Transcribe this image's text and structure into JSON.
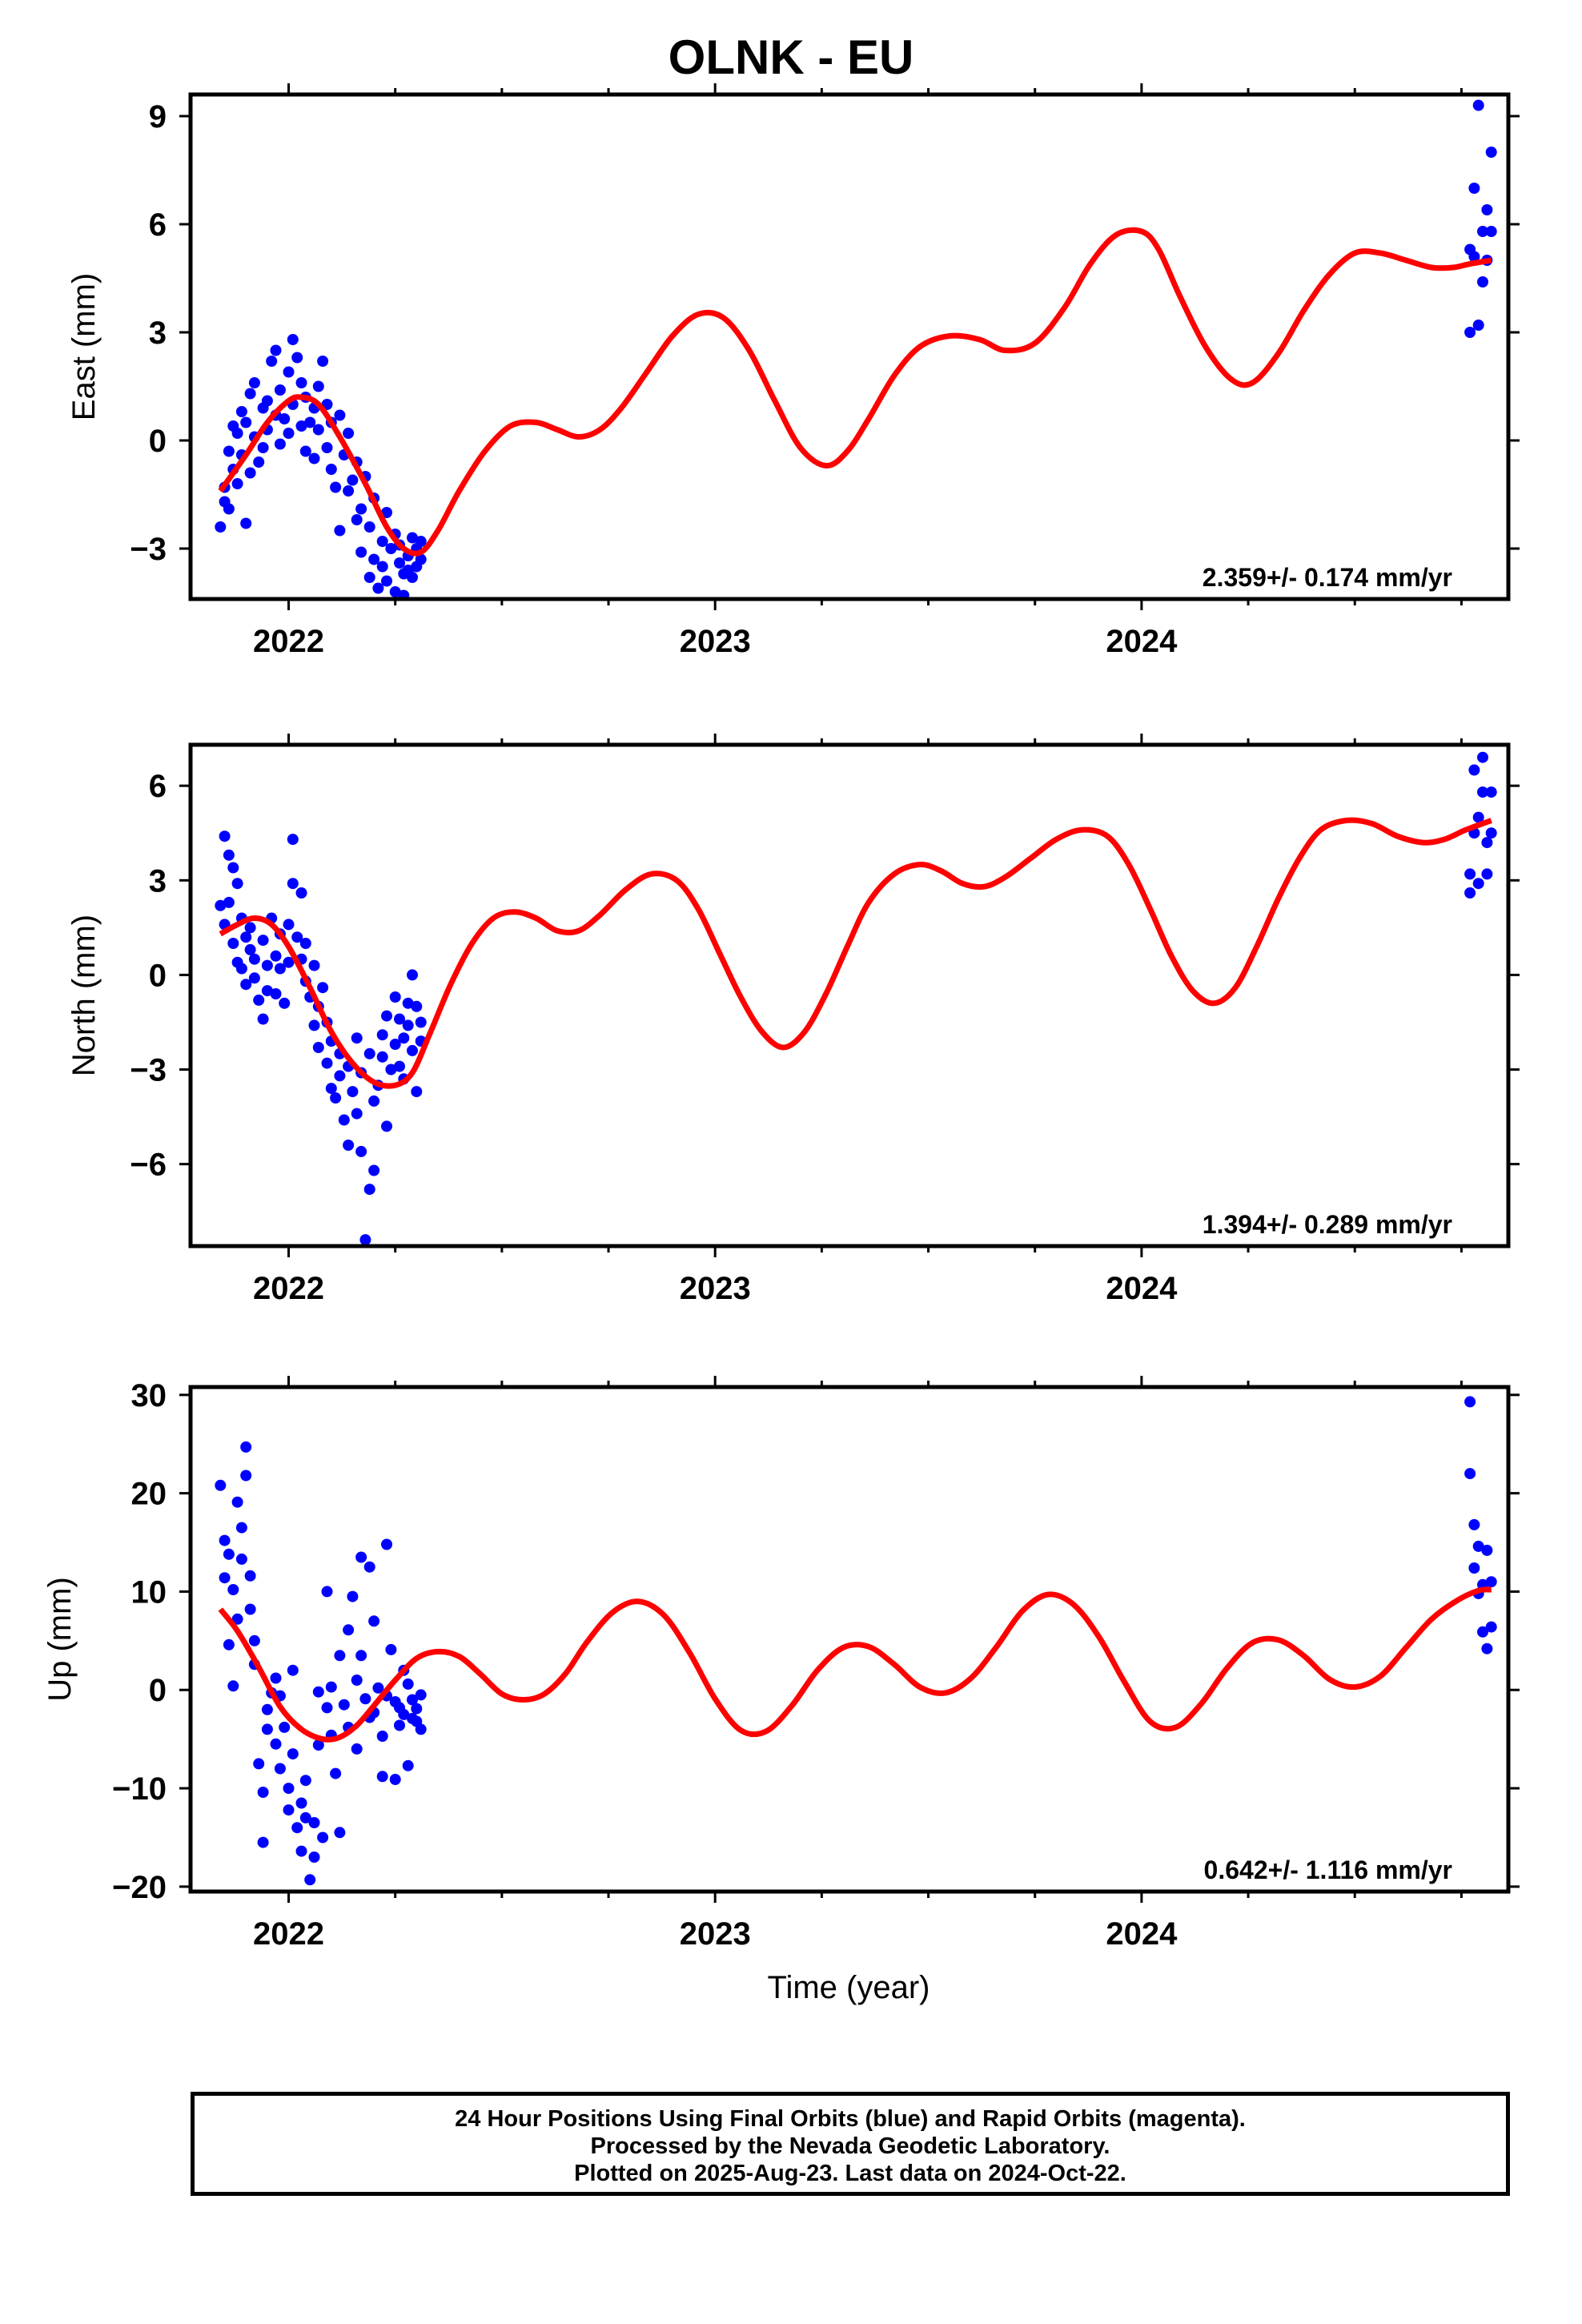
{
  "title": "OLNK - EU",
  "x_axis_label": "Time (year)",
  "footer": {
    "line1": "24 Hour Positions Using Final Orbits (blue) and Rapid Orbits (magenta).",
    "line2": "Processed by the Nevada Geodetic Laboratory.",
    "line3": "Plotted on 2025-Aug-23. Last data on 2024-Oct-22."
  },
  "colors": {
    "final_orbit_points": "#0000ff",
    "model_fit": "#ff0000"
  },
  "chart_data": [
    {
      "type": "scatter",
      "ylabel": "East (mm)",
      "rate_label": "2.359+/- 0.174 mm/yr",
      "xlim": [
        2021.77,
        2024.86
      ],
      "ylim": [
        -4.4,
        9.6
      ],
      "yticks": [
        -3,
        0,
        3,
        6,
        9
      ],
      "xticks": [
        2022,
        2023,
        2024
      ],
      "series": [
        {
          "kind": "points",
          "x": [
            2021.84,
            2021.85,
            2021.85,
            2021.86,
            2021.86,
            2021.87,
            2021.87,
            2021.88,
            2021.88,
            2021.89,
            2021.89,
            2021.9,
            2021.9,
            2021.91,
            2021.91,
            2021.92,
            2021.92,
            2021.93,
            2021.94,
            2021.94,
            2021.95,
            2021.95,
            2021.96,
            2021.97,
            2021.97,
            2021.98,
            2021.98,
            2021.99,
            2022.0,
            2022.0,
            2022.01,
            2022.01,
            2022.02,
            2022.03,
            2022.03,
            2022.04,
            2022.04,
            2022.05,
            2022.06,
            2022.06,
            2022.07,
            2022.07,
            2022.08,
            2022.09,
            2022.09,
            2022.1,
            2022.1,
            2022.11,
            2022.12,
            2022.12,
            2022.13,
            2022.14,
            2022.14,
            2022.15,
            2022.16,
            2022.16,
            2022.17,
            2022.17,
            2022.18,
            2022.19,
            2022.19,
            2022.2,
            2022.2,
            2022.21,
            2022.22,
            2022.22,
            2022.23,
            2022.23,
            2022.24,
            2022.25,
            2022.25,
            2022.26,
            2022.26,
            2022.27,
            2022.27,
            2022.28,
            2022.28,
            2022.29,
            2022.29,
            2022.3,
            2022.3,
            2022.31,
            2022.31,
            2024.77,
            2024.77,
            2024.78,
            2024.78,
            2024.79,
            2024.79,
            2024.8,
            2024.8,
            2024.81,
            2024.81,
            2024.82,
            2024.82
          ],
          "y": [
            -2.4,
            -1.7,
            -1.3,
            -1.9,
            -0.3,
            -0.8,
            0.4,
            -1.2,
            0.2,
            -0.4,
            0.8,
            -2.3,
            0.5,
            -0.9,
            1.3,
            0.1,
            1.6,
            -0.6,
            0.9,
            -0.2,
            1.1,
            0.3,
            2.2,
            0.7,
            2.5,
            -0.1,
            1.4,
            0.6,
            1.9,
            0.2,
            2.8,
            1.0,
            2.3,
            1.6,
            0.4,
            -0.3,
            1.2,
            0.5,
            0.9,
            -0.5,
            1.5,
            0.3,
            2.2,
            -0.2,
            1.0,
            -0.8,
            0.5,
            -1.3,
            -2.5,
            0.7,
            -0.4,
            -1.4,
            0.2,
            -1.1,
            -2.2,
            -0.6,
            -1.9,
            -3.1,
            -1.0,
            -3.8,
            -2.4,
            -3.3,
            -1.6,
            -4.1,
            -2.8,
            -3.5,
            -2.0,
            -3.9,
            -3.0,
            -2.6,
            -4.2,
            -3.4,
            -2.9,
            -3.7,
            -4.3,
            -3.2,
            -3.6,
            -2.7,
            -3.8,
            -3.0,
            -3.5,
            -2.8,
            -3.3,
            3.0,
            5.3,
            7.0,
            5.1,
            9.3,
            3.2,
            4.4,
            5.8,
            5.0,
            6.4,
            8.0,
            5.8
          ]
        },
        {
          "kind": "fit",
          "x": [
            2021.84,
            2021.9,
            2021.95,
            2022.0,
            2022.03,
            2022.07,
            2022.12,
            2022.18,
            2022.23,
            2022.27,
            2022.31,
            2022.35,
            2022.4,
            2022.46,
            2022.52,
            2022.58,
            2022.63,
            2022.68,
            2022.73,
            2022.78,
            2022.84,
            2022.9,
            2022.96,
            2023.02,
            2023.08,
            2023.14,
            2023.2,
            2023.26,
            2023.31,
            2023.36,
            2023.42,
            2023.48,
            2023.55,
            2023.62,
            2023.68,
            2023.75,
            2023.82,
            2023.88,
            2023.94,
            2024.0,
            2024.04,
            2024.09,
            2024.15,
            2024.21,
            2024.26,
            2024.32,
            2024.38,
            2024.44,
            2024.5,
            2024.56,
            2024.62,
            2024.68,
            2024.73,
            2024.77,
            2024.82
          ],
          "y": [
            -1.4,
            -0.4,
            0.5,
            1.1,
            1.2,
            1.0,
            0.1,
            -1.2,
            -2.4,
            -3.0,
            -3.1,
            -2.5,
            -1.4,
            -0.3,
            0.4,
            0.5,
            0.3,
            0.1,
            0.3,
            0.9,
            1.9,
            2.9,
            3.5,
            3.4,
            2.5,
            1.1,
            -0.2,
            -0.7,
            -0.3,
            0.6,
            1.8,
            2.6,
            2.9,
            2.8,
            2.5,
            2.7,
            3.7,
            4.9,
            5.7,
            5.8,
            5.3,
            4.0,
            2.6,
            1.7,
            1.6,
            2.4,
            3.6,
            4.6,
            5.2,
            5.2,
            5.0,
            4.8,
            4.8,
            4.9,
            5.0
          ]
        }
      ]
    },
    {
      "type": "scatter",
      "ylabel": "North (mm)",
      "rate_label": "1.394+/- 0.289 mm/yr",
      "xlim": [
        2021.77,
        2024.86
      ],
      "ylim": [
        -8.6,
        7.3
      ],
      "yticks": [
        -6,
        -3,
        0,
        3,
        6
      ],
      "xticks": [
        2022,
        2023,
        2024
      ],
      "series": [
        {
          "kind": "points",
          "x": [
            2021.84,
            2021.85,
            2021.85,
            2021.86,
            2021.86,
            2021.87,
            2021.87,
            2021.88,
            2021.88,
            2021.89,
            2021.89,
            2021.9,
            2021.9,
            2021.91,
            2021.91,
            2021.92,
            2021.92,
            2021.93,
            2021.94,
            2021.94,
            2021.95,
            2021.95,
            2021.96,
            2021.97,
            2021.97,
            2021.98,
            2021.98,
            2021.99,
            2022.0,
            2022.0,
            2022.01,
            2022.01,
            2022.02,
            2022.03,
            2022.03,
            2022.04,
            2022.04,
            2022.05,
            2022.06,
            2022.06,
            2022.07,
            2022.07,
            2022.08,
            2022.09,
            2022.09,
            2022.1,
            2022.1,
            2022.11,
            2022.12,
            2022.12,
            2022.13,
            2022.14,
            2022.14,
            2022.15,
            2022.16,
            2022.16,
            2022.17,
            2022.17,
            2022.18,
            2022.19,
            2022.19,
            2022.2,
            2022.2,
            2022.21,
            2022.22,
            2022.22,
            2022.23,
            2022.23,
            2022.24,
            2022.25,
            2022.25,
            2022.26,
            2022.26,
            2022.27,
            2022.27,
            2022.28,
            2022.28,
            2022.29,
            2022.29,
            2022.3,
            2022.3,
            2022.31,
            2022.31,
            2024.77,
            2024.77,
            2024.78,
            2024.78,
            2024.79,
            2024.79,
            2024.8,
            2024.8,
            2024.81,
            2024.81,
            2024.82,
            2024.82
          ],
          "y": [
            2.2,
            4.4,
            1.6,
            3.8,
            2.3,
            3.4,
            1.0,
            2.9,
            0.4,
            1.8,
            0.2,
            1.2,
            -0.3,
            0.8,
            1.5,
            -0.1,
            0.5,
            -0.8,
            1.1,
            -1.4,
            0.3,
            -0.5,
            1.8,
            0.6,
            -0.6,
            1.3,
            0.2,
            -0.9,
            1.6,
            0.4,
            4.3,
            2.9,
            1.2,
            2.6,
            0.5,
            -0.2,
            1.0,
            -0.7,
            0.3,
            -1.6,
            -1.0,
            -2.3,
            -0.4,
            -2.8,
            -1.5,
            -3.6,
            -2.1,
            -3.9,
            -2.5,
            -3.2,
            -4.6,
            -2.9,
            -5.4,
            -3.7,
            -2.0,
            -4.4,
            -5.6,
            -3.1,
            -8.4,
            -6.8,
            -2.5,
            -4.0,
            -6.2,
            -3.5,
            -2.6,
            -1.9,
            -4.8,
            -1.3,
            -3.0,
            -2.2,
            -0.7,
            -2.9,
            -1.4,
            -3.3,
            -2.0,
            -0.9,
            -1.6,
            -2.4,
            0.0,
            -1.0,
            -3.7,
            -2.1,
            -1.5,
            2.6,
            3.2,
            4.5,
            6.5,
            5.0,
            2.9,
            5.8,
            6.9,
            4.2,
            3.2,
            5.8,
            4.5
          ],
          "_note": ""
        },
        {
          "kind": "fit",
          "x": [
            2021.84,
            2021.88,
            2021.92,
            2021.96,
            2022.0,
            2022.05,
            2022.1,
            2022.15,
            2022.2,
            2022.25,
            2022.29,
            2022.33,
            2022.38,
            2022.43,
            2022.48,
            2022.53,
            2022.58,
            2022.63,
            2022.68,
            2022.73,
            2022.79,
            2022.85,
            2022.91,
            2022.96,
            2023.01,
            2023.06,
            2023.11,
            2023.16,
            2023.21,
            2023.26,
            2023.31,
            2023.36,
            2023.42,
            2023.48,
            2023.53,
            2023.58,
            2023.63,
            2023.68,
            2023.74,
            2023.8,
            2023.86,
            2023.92,
            2023.97,
            2024.02,
            2024.07,
            2024.12,
            2024.17,
            2024.22,
            2024.27,
            2024.32,
            2024.37,
            2024.42,
            2024.48,
            2024.54,
            2024.6,
            2024.66,
            2024.71,
            2024.76,
            2024.82
          ],
          "y": [
            1.3,
            1.6,
            1.8,
            1.6,
            0.9,
            -0.4,
            -1.8,
            -2.8,
            -3.4,
            -3.5,
            -3.1,
            -1.9,
            -0.3,
            1.0,
            1.8,
            2.0,
            1.8,
            1.4,
            1.4,
            1.9,
            2.7,
            3.2,
            3.0,
            2.1,
            0.7,
            -0.7,
            -1.8,
            -2.3,
            -1.8,
            -0.6,
            0.9,
            2.3,
            3.2,
            3.5,
            3.3,
            2.9,
            2.8,
            3.1,
            3.7,
            4.3,
            4.6,
            4.4,
            3.5,
            2.1,
            0.6,
            -0.5,
            -0.9,
            -0.4,
            0.9,
            2.4,
            3.7,
            4.6,
            4.9,
            4.8,
            4.4,
            4.2,
            4.3,
            4.6,
            4.9
          ]
        }
      ]
    },
    {
      "type": "scatter",
      "ylabel": "Up (mm)",
      "rate_label": "0.642+/- 1.116 mm/yr",
      "xlim": [
        2021.77,
        2024.86
      ],
      "ylim": [
        -20.5,
        30.8
      ],
      "yticks": [
        -20,
        -10,
        0,
        10,
        20,
        30
      ],
      "xticks": [
        2022,
        2023,
        2024
      ],
      "series": [
        {
          "kind": "points",
          "x": [
            2021.84,
            2021.85,
            2021.85,
            2021.86,
            2021.86,
            2021.87,
            2021.87,
            2021.88,
            2021.88,
            2021.89,
            2021.89,
            2021.9,
            2021.9,
            2021.91,
            2021.91,
            2021.92,
            2021.92,
            2021.93,
            2021.94,
            2021.94,
            2021.95,
            2021.95,
            2021.96,
            2021.97,
            2021.97,
            2021.98,
            2021.98,
            2021.99,
            2022.0,
            2022.0,
            2022.01,
            2022.01,
            2022.02,
            2022.03,
            2022.03,
            2022.04,
            2022.04,
            2022.05,
            2022.06,
            2022.06,
            2022.07,
            2022.07,
            2022.08,
            2022.09,
            2022.09,
            2022.1,
            2022.1,
            2022.11,
            2022.12,
            2022.12,
            2022.13,
            2022.14,
            2022.14,
            2022.15,
            2022.16,
            2022.16,
            2022.17,
            2022.17,
            2022.18,
            2022.19,
            2022.19,
            2022.2,
            2022.2,
            2022.21,
            2022.22,
            2022.22,
            2022.23,
            2022.23,
            2022.24,
            2022.25,
            2022.25,
            2022.26,
            2022.26,
            2022.27,
            2022.27,
            2022.28,
            2022.28,
            2022.29,
            2022.29,
            2022.3,
            2022.3,
            2022.31,
            2022.31,
            2024.77,
            2024.77,
            2024.78,
            2024.78,
            2024.79,
            2024.79,
            2024.8,
            2024.8,
            2024.81,
            2024.81,
            2024.82,
            2024.82
          ],
          "y": [
            20.8,
            15.2,
            11.4,
            13.8,
            4.6,
            10.2,
            0.4,
            19.1,
            7.2,
            16.5,
            13.3,
            24.7,
            21.8,
            11.6,
            8.2,
            5.0,
            2.6,
            -7.5,
            -10.4,
            -15.5,
            -4.0,
            -2.0,
            -0.3,
            1.2,
            -5.5,
            -8.0,
            -0.6,
            -3.8,
            -10.0,
            -12.2,
            -6.5,
            2.0,
            -14.0,
            -11.5,
            -16.4,
            -13.0,
            -9.2,
            -19.3,
            -13.5,
            -17.0,
            -5.6,
            -0.2,
            -15.0,
            -1.8,
            10.0,
            0.3,
            -4.6,
            -8.5,
            -14.5,
            3.5,
            -1.5,
            6.1,
            -3.8,
            9.5,
            1.0,
            -6.0,
            13.5,
            3.5,
            -0.9,
            -2.8,
            12.5,
            -2.3,
            7.0,
            0.2,
            -8.8,
            -4.7,
            14.8,
            -0.6,
            4.1,
            -1.2,
            -9.1,
            -3.6,
            -1.8,
            2.0,
            -2.5,
            0.6,
            -7.7,
            -1.0,
            -2.9,
            -1.9,
            -3.2,
            -4.0,
            -0.5,
            29.3,
            22.0,
            16.8,
            12.4,
            9.8,
            14.6,
            10.7,
            5.9,
            14.2,
            4.2,
            11.0,
            6.4
          ]
        },
        {
          "kind": "fit",
          "x": [
            2021.84,
            2021.88,
            2021.93,
            2021.98,
            2022.03,
            2022.08,
            2022.12,
            2022.16,
            2022.2,
            2022.25,
            2022.3,
            2022.35,
            2022.4,
            2022.45,
            2022.5,
            2022.55,
            2022.6,
            2022.65,
            2022.7,
            2022.76,
            2022.82,
            2022.88,
            2022.94,
            2023.0,
            2023.06,
            2023.12,
            2023.18,
            2023.24,
            2023.3,
            2023.36,
            2023.42,
            2023.48,
            2023.54,
            2023.6,
            2023.66,
            2023.72,
            2023.78,
            2023.84,
            2023.9,
            2023.96,
            2024.02,
            2024.08,
            2024.14,
            2024.2,
            2024.26,
            2024.32,
            2024.38,
            2024.44,
            2024.5,
            2024.56,
            2024.62,
            2024.68,
            2024.74,
            2024.79,
            2024.82
          ],
          "y": [
            8.2,
            6.0,
            2.3,
            -1.7,
            -4.0,
            -5.0,
            -4.8,
            -3.6,
            -1.6,
            1.0,
            3.2,
            3.9,
            3.4,
            1.6,
            -0.4,
            -1.0,
            -0.4,
            1.7,
            4.9,
            7.9,
            9.0,
            7.6,
            3.8,
            -0.9,
            -4.1,
            -4.2,
            -1.6,
            2.0,
            4.3,
            4.4,
            2.6,
            0.3,
            -0.3,
            1.2,
            4.4,
            8.0,
            9.7,
            8.7,
            5.4,
            0.8,
            -3.2,
            -3.8,
            -1.4,
            2.2,
            4.8,
            5.1,
            3.5,
            1.1,
            0.3,
            1.4,
            4.3,
            7.2,
            9.1,
            10.1,
            10.2
          ]
        }
      ]
    }
  ]
}
